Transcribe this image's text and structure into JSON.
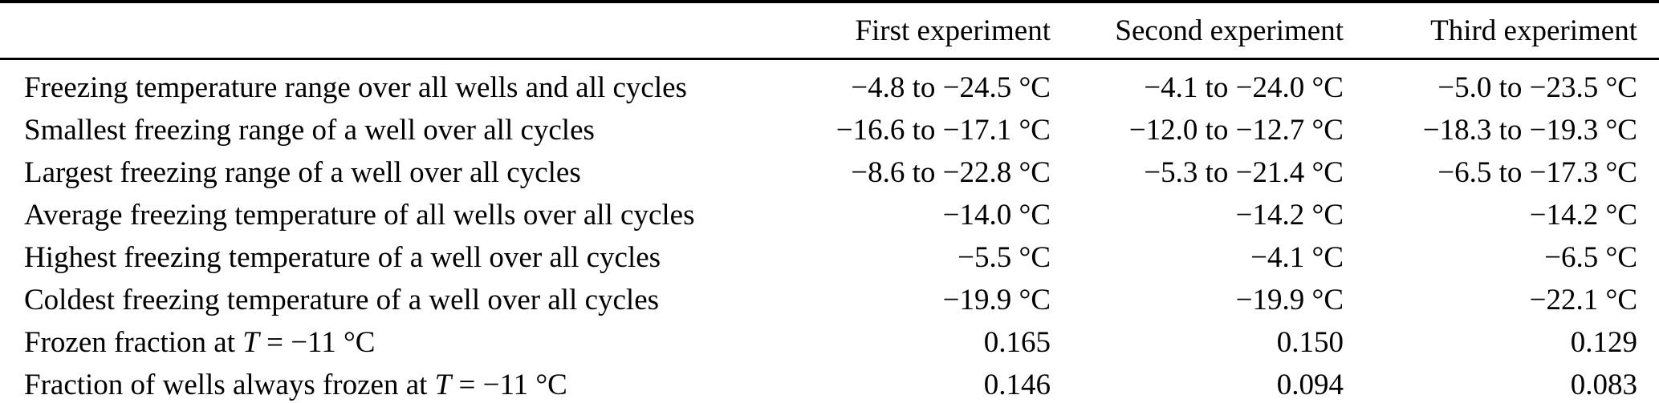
{
  "table": {
    "columns": [
      "",
      "First experiment",
      "Second experiment",
      "Third experiment"
    ],
    "rows": [
      {
        "label_pre": "Freezing temperature range over all wells and all cycles",
        "label_math": "",
        "label_post": "",
        "values": [
          "−4.8 to −24.5 °C",
          "−4.1 to −24.0 °C",
          "−5.0 to −23.5 °C"
        ]
      },
      {
        "label_pre": "Smallest freezing range of a well over all cycles",
        "label_math": "",
        "label_post": "",
        "values": [
          "−16.6 to −17.1 °C",
          "−12.0 to −12.7 °C",
          "−18.3 to −19.3 °C"
        ]
      },
      {
        "label_pre": "Largest freezing range of a well over all cycles",
        "label_math": "",
        "label_post": "",
        "values": [
          "−8.6 to −22.8 °C",
          "−5.3 to −21.4 °C",
          "−6.5 to −17.3 °C"
        ]
      },
      {
        "label_pre": "Average freezing temperature of all wells over all cycles",
        "label_math": "",
        "label_post": "",
        "values": [
          "−14.0 °C",
          "−14.2 °C",
          "−14.2 °C"
        ]
      },
      {
        "label_pre": "Highest freezing temperature of a well over all cycles",
        "label_math": "",
        "label_post": "",
        "values": [
          "−5.5 °C",
          "−4.1 °C",
          "−6.5 °C"
        ]
      },
      {
        "label_pre": "Coldest freezing temperature of a well over all cycles",
        "label_math": "",
        "label_post": "",
        "values": [
          "−19.9 °C",
          "−19.9 °C",
          "−22.1 °C"
        ]
      },
      {
        "label_pre": "Frozen fraction at ",
        "label_math": "T",
        "label_post": " = −11 °C",
        "values": [
          "0.165",
          "0.150",
          "0.129"
        ]
      },
      {
        "label_pre": "Fraction of wells always frozen at ",
        "label_math": "T",
        "label_post": " = −11 °C",
        "values": [
          "0.146",
          "0.094",
          "0.083"
        ]
      }
    ]
  }
}
